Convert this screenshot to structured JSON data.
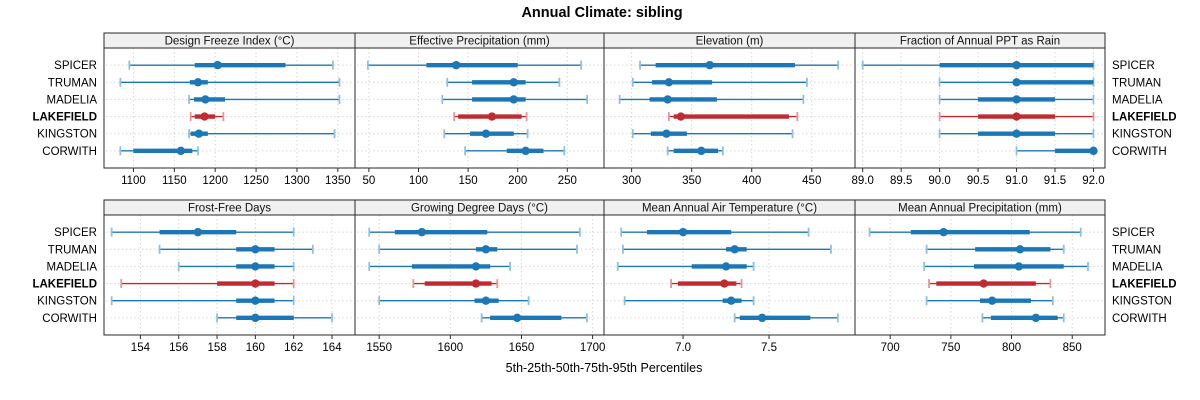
{
  "title": "Annual Climate: sibling",
  "axis_title": "5th-25th-50th-75th-95th Percentiles",
  "stations": [
    "SPICER",
    "TRUMAN",
    "MADELIA",
    "LAKEFIELD",
    "KINGSTON",
    "CORWITH"
  ],
  "highlight_station": "LAKEFIELD",
  "colors": {
    "series_blue": "#1b77b5",
    "series_blue_cap": "#8fc0e0",
    "highlight_red": "#bf2b30",
    "highlight_red_cap": "#e59599",
    "grid": "#d6d6d6",
    "border": "#2a2a2a",
    "strip_bg": "#f0f0f0"
  },
  "chart_data": {
    "type": "dotplot-percentiles",
    "percentile_labels": [
      "5th",
      "25th",
      "50th",
      "75th",
      "95th"
    ],
    "legend_position": "none",
    "grid": "dotted",
    "panels": [
      {
        "id": "design-freeze-index",
        "title": "Design Freeze Index (°C)",
        "xlim": [
          1064,
          1371
        ],
        "ticks": [
          1100,
          1150,
          1200,
          1250,
          1300,
          1350
        ],
        "tick_decimals": 0,
        "values": {
          "SPICER": [
            1095,
            1175,
            1203,
            1286,
            1344
          ],
          "TRUMAN": [
            1084,
            1169,
            1179,
            1191,
            1352
          ],
          "MADELIA": [
            1168,
            1174,
            1188,
            1212,
            1352
          ],
          "LAKEFIELD": [
            1170,
            1175,
            1187,
            1200,
            1210
          ],
          "KINGSTON": [
            1168,
            1170,
            1180,
            1191,
            1346
          ],
          "CORWITH": [
            1084,
            1100,
            1158,
            1172,
            1179
          ]
        }
      },
      {
        "id": "effective-precipitation",
        "title": "Effective Precipitation (mm)",
        "xlim": [
          36,
          287
        ],
        "ticks": [
          50,
          100,
          150,
          200,
          250
        ],
        "tick_decimals": 0,
        "values": {
          "SPICER": [
            49,
            108,
            138,
            200,
            264
          ],
          "TRUMAN": [
            129,
            154,
            196,
            208,
            242
          ],
          "MADELIA": [
            124,
            154,
            196,
            208,
            270
          ],
          "LAKEFIELD": [
            136,
            140,
            174,
            204,
            209
          ],
          "KINGSTON": [
            126,
            152,
            168,
            196,
            210
          ],
          "CORWITH": [
            147,
            189,
            208,
            226,
            247
          ]
        }
      },
      {
        "id": "elevation",
        "title": "Elevation (m)",
        "xlim": [
          277,
          486
        ],
        "ticks": [
          300,
          350,
          400,
          450
        ],
        "tick_decimals": 0,
        "values": {
          "SPICER": [
            307,
            320,
            365,
            436,
            472
          ],
          "TRUMAN": [
            301,
            317,
            331,
            367,
            446
          ],
          "MADELIA": [
            290,
            315,
            330,
            371,
            443
          ],
          "LAKEFIELD": [
            331,
            335,
            341,
            431,
            438
          ],
          "KINGSTON": [
            301,
            316,
            329,
            346,
            434
          ],
          "CORWITH": [
            330,
            335,
            358,
            372,
            376
          ]
        }
      },
      {
        "id": "fraction-of-annual-ppt-as-rain",
        "title": "Fraction of Annual PPT as Rain",
        "xlim": [
          88.9,
          92.15
        ],
        "ticks": [
          89.0,
          89.5,
          90.0,
          90.5,
          91.0,
          91.5,
          92.0
        ],
        "tick_decimals": 1,
        "values": {
          "SPICER": [
            89.0,
            90.0,
            91.0,
            92.0,
            92.0
          ],
          "TRUMAN": [
            90.0,
            91.0,
            91.0,
            92.0,
            92.0
          ],
          "MADELIA": [
            90.0,
            90.5,
            91.0,
            91.5,
            92.0
          ],
          "LAKEFIELD": [
            90.0,
            90.5,
            91.0,
            91.5,
            92.0
          ],
          "KINGSTON": [
            90.0,
            90.5,
            91.0,
            91.5,
            92.0
          ],
          "CORWITH": [
            91.0,
            91.5,
            92.0,
            92.0,
            92.0
          ]
        }
      },
      {
        "id": "frost-free-days",
        "title": "Frost-Free Days",
        "xlim": [
          152.1,
          165.2
        ],
        "ticks": [
          154,
          156,
          158,
          160,
          162,
          164
        ],
        "tick_decimals": 0,
        "values": {
          "SPICER": [
            152.5,
            155,
            157,
            159,
            162
          ],
          "TRUMAN": [
            155,
            159,
            160,
            161,
            163
          ],
          "MADELIA": [
            156,
            159,
            160,
            161,
            162
          ],
          "LAKEFIELD": [
            153,
            158,
            160,
            161,
            162
          ],
          "KINGSTON": [
            152.5,
            159,
            160,
            161,
            162
          ],
          "CORWITH": [
            158,
            159,
            160,
            162,
            164
          ]
        }
      },
      {
        "id": "growing-degree-days",
        "title": "Growing Degree Days (°C)",
        "xlim": [
          1533,
          1708
        ],
        "ticks": [
          1550,
          1600,
          1650,
          1700
        ],
        "tick_decimals": 0,
        "values": {
          "SPICER": [
            1543,
            1561,
            1580,
            1626,
            1691
          ],
          "TRUMAN": [
            1550,
            1618,
            1625,
            1633,
            1689
          ],
          "MADELIA": [
            1543,
            1573,
            1618,
            1628,
            1642
          ],
          "LAKEFIELD": [
            1574,
            1582,
            1618,
            1629,
            1633
          ],
          "KINGSTON": [
            1550,
            1617,
            1625,
            1634,
            1655
          ],
          "CORWITH": [
            1622,
            1628,
            1647,
            1678,
            1696
          ]
        }
      },
      {
        "id": "mean-annual-air-temperature",
        "title": "Mean Annual Air Temperature (°C)",
        "xlim": [
          6.54,
          8.0
        ],
        "ticks": [
          7.0,
          7.5
        ],
        "tick_decimals": 1,
        "values": {
          "SPICER": [
            6.64,
            6.79,
            7.0,
            7.28,
            7.73
          ],
          "TRUMAN": [
            6.65,
            7.25,
            7.3,
            7.37,
            7.86
          ],
          "MADELIA": [
            6.62,
            7.05,
            7.25,
            7.37,
            7.41
          ],
          "LAKEFIELD": [
            6.93,
            6.97,
            7.24,
            7.31,
            7.34
          ],
          "KINGSTON": [
            6.66,
            7.23,
            7.28,
            7.34,
            7.41
          ],
          "CORWITH": [
            7.3,
            7.33,
            7.46,
            7.74,
            7.9
          ]
        }
      },
      {
        "id": "mean-annual-precipitation",
        "title": "Mean Annual Precipitation (mm)",
        "xlim": [
          671,
          877
        ],
        "ticks": [
          700,
          750,
          800,
          850
        ],
        "tick_decimals": 0,
        "values": {
          "SPICER": [
            683,
            717,
            744,
            815,
            857
          ],
          "TRUMAN": [
            730,
            770,
            807,
            832,
            843
          ],
          "MADELIA": [
            728,
            769,
            806,
            843,
            863
          ],
          "LAKEFIELD": [
            732,
            738,
            777,
            820,
            832
          ],
          "KINGSTON": [
            730,
            774,
            784,
            816,
            834
          ],
          "CORWITH": [
            776,
            783,
            820,
            838,
            843
          ]
        }
      }
    ]
  }
}
